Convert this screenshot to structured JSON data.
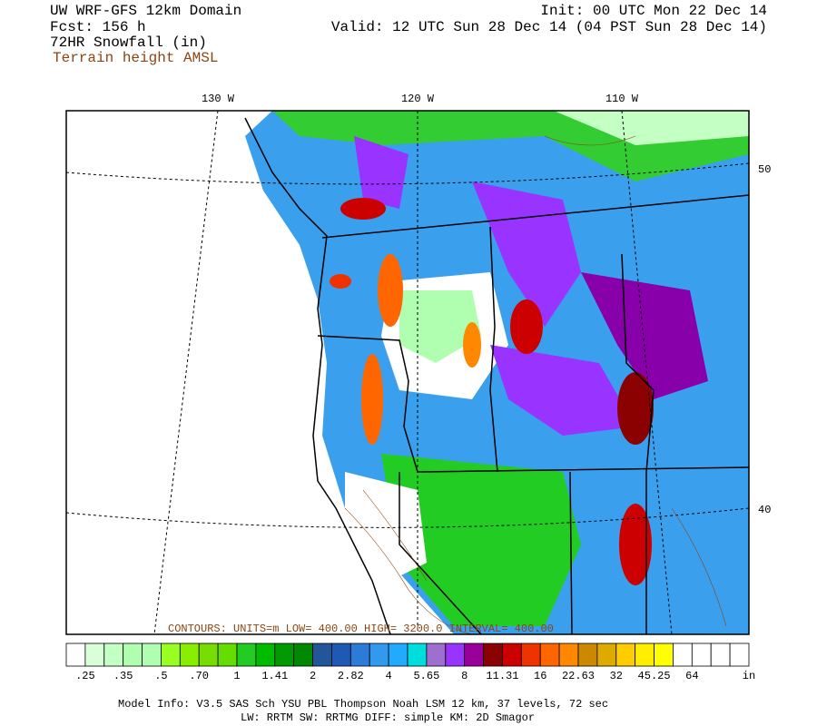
{
  "header": {
    "left": [
      "UW WRF-GFS 12km Domain",
      "Fcst:  156 h",
      "72HR Snowfall (in)"
    ],
    "terrain": "Terrain height AMSL",
    "right": [
      "Init: 00 UTC Mon 22 Dec 14",
      "Valid: 12 UTC Sun 28 Dec 14 (04 PST Sun 28 Dec 14)"
    ]
  },
  "map": {
    "lon_labels": [
      "130 W",
      "120 W",
      "110 W"
    ],
    "lat_labels": [
      "50",
      "40"
    ],
    "contour_info": "CONTOURS: UNITS=m  LOW= 400.00  HIGH= 3200.0  INTERVAL= 400.00"
  },
  "colorbar": {
    "colors": [
      "#ffffff",
      "#d8ffd8",
      "#c4ffc4",
      "#b0ffb0",
      "#b0ffb0",
      "#99ff22",
      "#88ee00",
      "#77dd00",
      "#66dd00",
      "#22cc22",
      "#00bb00",
      "#009900",
      "#008800",
      "#225599",
      "#1e5ab4",
      "#2c7bd8",
      "#3399ee",
      "#22aaff",
      "#00dddd",
      "#9f6fd0",
      "#9933ff",
      "#990099",
      "#8b0000",
      "#cc0000",
      "#ee3300",
      "#ff6600",
      "#ff8800",
      "#cc8800",
      "#ddaa00",
      "#ffcc00",
      "#ffee00",
      "#ffff00",
      "#ffffff",
      "#ffffff",
      "#ffffff",
      "#ffffff"
    ],
    "labels": [
      ".25",
      ".35",
      ".5",
      ".70",
      "1",
      "1.41",
      "2",
      "2.82",
      "4",
      "5.65",
      "8",
      "11.31",
      "16",
      "22.63",
      "32",
      "45.25",
      "64"
    ],
    "unit": "in"
  },
  "footer": [
    "Model Info: V3.5     SAS Sch YSU PBL  Thompson     Noah LSM  12 km,    37 levels,    72 sec",
    "LW: RRTM SW: RRTMG    DIFF: simple KM: 2D Smagor"
  ]
}
